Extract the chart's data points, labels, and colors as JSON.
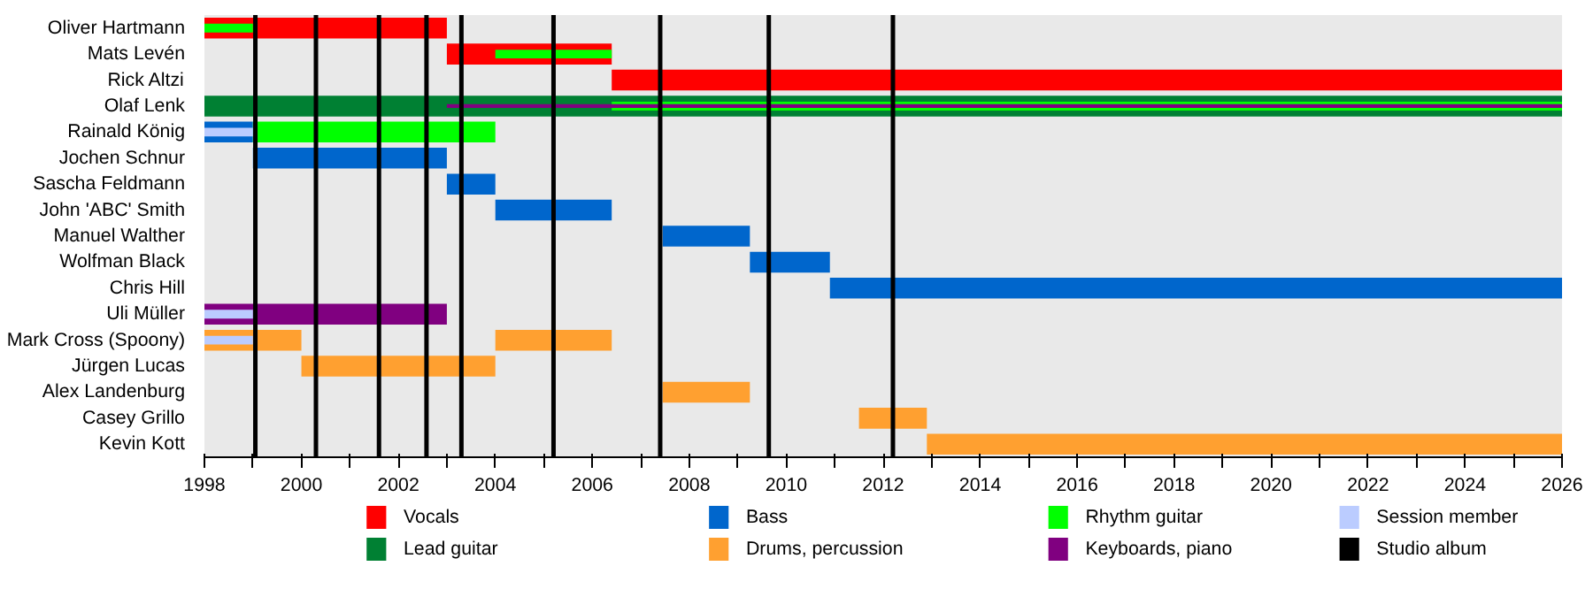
{
  "chart_data": {
    "type": "bar",
    "orientation": "horizontal",
    "categories": [
      "Oliver Hartmann",
      "Mats Levén",
      "Rick Altzi",
      "Olaf Lenk",
      "Rainald König",
      "Jochen Schnur",
      "Sascha Feldmann",
      "John 'ABC' Smith",
      "Manuel Walther",
      "Wolfman Black",
      "Chris Hill",
      "Uli Müller",
      "Mark Cross (Spoony)",
      "Jürgen Lucas",
      "Alex Landenburg",
      "Casey Grillo",
      "Kevin Kott"
    ],
    "series": [
      {
        "name": "Vocals",
        "color": "#ff0000",
        "base": [
          1998,
          2003,
          2006.4,
          null,
          null,
          null,
          null,
          null,
          null,
          null,
          null,
          null,
          null,
          null,
          null,
          null,
          null
        ],
        "values": [
          5,
          3.4,
          19.6,
          null,
          null,
          null,
          null,
          null,
          null,
          null,
          null,
          null,
          null,
          null,
          null,
          null,
          null
        ]
      },
      {
        "name": "Lead guitar",
        "color": "#008033",
        "base": [
          null,
          null,
          null,
          1998,
          null,
          null,
          null,
          null,
          null,
          null,
          null,
          null,
          null,
          null,
          null,
          null,
          null
        ],
        "values": [
          null,
          null,
          null,
          28,
          null,
          null,
          null,
          null,
          null,
          null,
          null,
          null,
          null,
          null,
          null,
          null,
          null
        ]
      },
      {
        "name": "Bass",
        "color": "#0066cc",
        "base": [
          null,
          null,
          null,
          null,
          1998,
          1999,
          2003,
          2004,
          2007.45,
          2009.25,
          2010.9,
          null,
          null,
          null,
          null,
          null,
          null
        ],
        "values": [
          null,
          null,
          null,
          null,
          1,
          4,
          1,
          2.4,
          1.8,
          1.65,
          15.1,
          null,
          null,
          null,
          null,
          null,
          null
        ]
      },
      {
        "name": "Drums, percussion",
        "color": "#ffa030",
        "base": [
          null,
          null,
          null,
          null,
          null,
          null,
          null,
          null,
          null,
          null,
          null,
          null,
          1998,
          2000,
          2007.45,
          2011.5,
          2012.9
        ],
        "values": [
          null,
          null,
          null,
          null,
          null,
          null,
          null,
          null,
          null,
          null,
          null,
          null,
          2,
          4,
          1.8,
          1.4,
          13.1
        ]
      },
      {
        "color": "#ffa030",
        "base": [
          null,
          null,
          null,
          null,
          null,
          null,
          null,
          null,
          null,
          null,
          null,
          null,
          2004,
          null,
          null,
          null,
          null
        ],
        "values": [
          null,
          null,
          null,
          null,
          null,
          null,
          null,
          null,
          null,
          null,
          null,
          null,
          2.4,
          null,
          null,
          null,
          null
        ]
      },
      {
        "name": "Rhythm guitar",
        "color": "#00ff00",
        "base": [
          1998,
          2004,
          null,
          2006.4,
          1999,
          null,
          null,
          null,
          null,
          null,
          null,
          null,
          null,
          null,
          null,
          null,
          null
        ],
        "values": [
          1,
          2.4,
          null,
          19.6,
          5,
          null,
          null,
          null,
          null,
          null,
          null,
          null,
          null,
          null,
          null,
          null,
          null
        ]
      },
      {
        "name": "Keyboards, piano",
        "color": "#800080",
        "base": [
          null,
          null,
          null,
          2003,
          null,
          null,
          null,
          null,
          null,
          null,
          null,
          1998,
          null,
          null,
          null,
          null,
          null
        ],
        "values": [
          null,
          null,
          null,
          23,
          null,
          null,
          null,
          null,
          null,
          null,
          null,
          5,
          null,
          null,
          null,
          null,
          null
        ]
      },
      {
        "name": "Session member",
        "color": "#bbccff",
        "base": [
          null,
          null,
          null,
          null,
          1998,
          null,
          null,
          null,
          null,
          null,
          null,
          1998,
          1998,
          null,
          null,
          null,
          null
        ],
        "values": [
          null,
          null,
          null,
          null,
          1,
          null,
          null,
          null,
          null,
          null,
          null,
          1,
          1,
          null,
          null,
          null,
          null
        ]
      }
    ],
    "xlim": [
      1998,
      2026
    ],
    "xticks": [
      1998,
      {
        "value": 1999,
        "label": null
      },
      2000,
      {
        "value": 2001,
        "label": null
      },
      2002,
      {
        "value": 2003,
        "label": null
      },
      2004,
      {
        "value": 2005,
        "label": null
      },
      2006,
      {
        "value": 2007,
        "label": null
      },
      2008,
      {
        "value": 2009,
        "label": null
      },
      2010,
      {
        "value": 2011,
        "label": null
      },
      2012,
      {
        "value": 2013,
        "label": null
      },
      2014,
      {
        "value": 2015,
        "label": null
      },
      2016,
      {
        "value": 2017,
        "label": null
      },
      2018,
      {
        "value": 2019,
        "label": null
      },
      2020,
      {
        "value": 2021,
        "label": null
      },
      2022,
      {
        "value": 2023,
        "label": null
      },
      2024,
      {
        "value": 2025,
        "label": null
      },
      2026
    ],
    "ref_lines": [
      {
        "axis": "x",
        "value": 1999.05,
        "label": "Studio album",
        "color": "#000000"
      },
      {
        "axis": "x",
        "value": 2000.3,
        "color": "#000000"
      },
      {
        "axis": "x",
        "value": 2001.6,
        "color": "#000000"
      },
      {
        "axis": "x",
        "value": 2002.58,
        "color": "#000000"
      },
      {
        "axis": "x",
        "value": 2003.3,
        "color": "#000000"
      },
      {
        "axis": "x",
        "value": 2005.2,
        "color": "#000000"
      },
      {
        "axis": "x",
        "value": 2007.4,
        "color": "#000000"
      },
      {
        "axis": "x",
        "value": 2009.64,
        "color": "#000000"
      },
      {
        "axis": "x",
        "value": 2012.2,
        "color": "#000000"
      }
    ],
    "legend": "bottom"
  }
}
